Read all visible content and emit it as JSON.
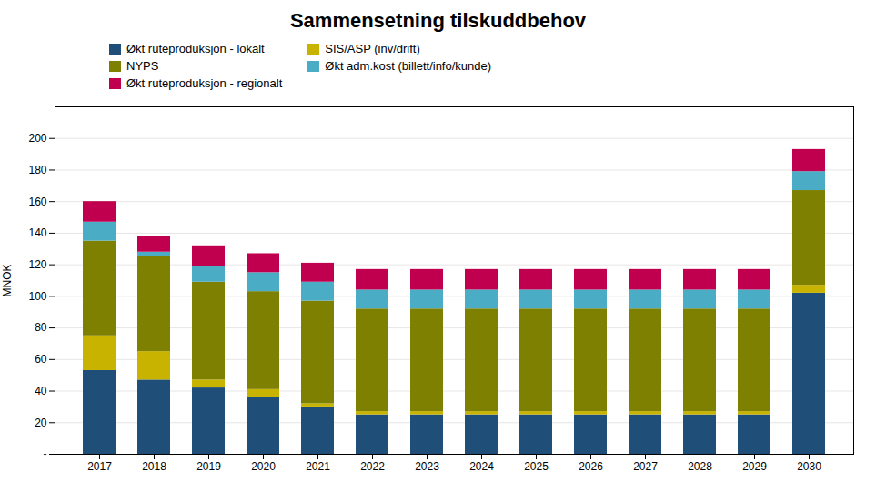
{
  "chart_data": {
    "type": "bar",
    "stacked": true,
    "title": "Sammensetning tilskuddbehov",
    "ylabel": "MNOK",
    "categories": [
      "2017",
      "2018",
      "2019",
      "2020",
      "2021",
      "2022",
      "2023",
      "2024",
      "2025",
      "2026",
      "2027",
      "2028",
      "2029",
      "2030"
    ],
    "series": [
      {
        "name": "Økt ruteproduksjon - lokalt",
        "color": "#1F4E79",
        "values": [
          53,
          47,
          42,
          36,
          30,
          25,
          25,
          25,
          25,
          25,
          25,
          25,
          25,
          102
        ]
      },
      {
        "name": "SIS/ASP (inv/drift)",
        "color": "#C8B400",
        "values": [
          22,
          18,
          5,
          5,
          2,
          2,
          2,
          2,
          2,
          2,
          2,
          2,
          2,
          5
        ]
      },
      {
        "name": "NYPS",
        "color": "#7D8000",
        "values": [
          60,
          60,
          62,
          62,
          65,
          65,
          65,
          65,
          65,
          65,
          65,
          65,
          65,
          60
        ]
      },
      {
        "name": "Økt adm.kost (billett/info/kunde)",
        "color": "#4BACC6",
        "values": [
          12,
          3,
          10,
          12,
          12,
          12,
          12,
          12,
          12,
          12,
          12,
          12,
          12,
          12
        ]
      },
      {
        "name": "Økt ruteproduksjon - regionalt",
        "color": "#C0004E",
        "values": [
          13,
          10,
          13,
          12,
          12,
          13,
          13,
          13,
          13,
          13,
          13,
          13,
          13,
          14
        ]
      }
    ],
    "ylim": [
      0,
      220
    ],
    "yticks": [
      {
        "value": 0,
        "label": "-"
      },
      20,
      40,
      60,
      80,
      100,
      120,
      140,
      160,
      180,
      200
    ],
    "grid": true,
    "legend": "top"
  }
}
